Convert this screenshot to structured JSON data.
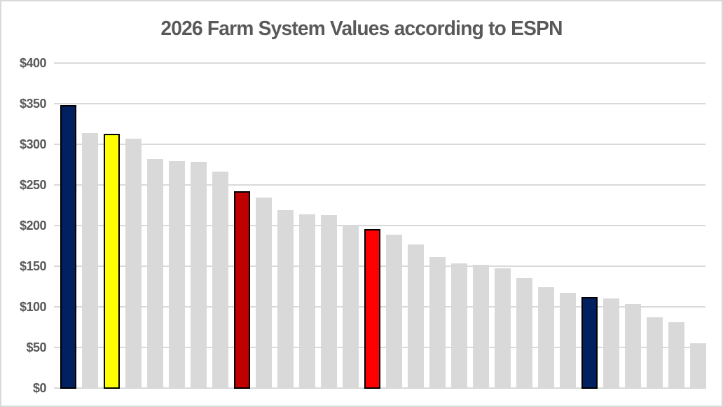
{
  "page": {
    "background_color": "#ffffff",
    "frame_border_color": "#d9d9d9"
  },
  "chart_data": {
    "type": "bar",
    "title": "2026 Farm System Values according to ESPN",
    "title_color": "#595959",
    "values": [
      349,
      315,
      314,
      308,
      283,
      280,
      279,
      267,
      243,
      235,
      220,
      215,
      214,
      200,
      197,
      190,
      178,
      162,
      154,
      153,
      148,
      136,
      125,
      118,
      113,
      111,
      104,
      88,
      82,
      56
    ],
    "bar_count": 30,
    "default_bar_color": "#d9d9d9",
    "highlight_bars": [
      {
        "index": 0,
        "color": "#002060",
        "outline": "#000000"
      },
      {
        "index": 2,
        "color": "#ffff00",
        "outline": "#000000"
      },
      {
        "index": 8,
        "color": "#c00000",
        "outline": "#000000"
      },
      {
        "index": 14,
        "color": "#ff0000",
        "outline": "#000000"
      },
      {
        "index": 24,
        "color": "#002060",
        "outline": "#000000"
      }
    ],
    "xlabel": "",
    "ylabel": "",
    "ylim": [
      0,
      400
    ],
    "ytick_step": 50,
    "ytick_labels": [
      "$400",
      "$350",
      "$300",
      "$250",
      "$200",
      "$150",
      "$100",
      "$50",
      "$0"
    ],
    "ytick_color": "#595959",
    "gridline_color": "#d9d9d9",
    "grid": true,
    "legend": false,
    "x_axis_tick_labels_visible": false
  }
}
